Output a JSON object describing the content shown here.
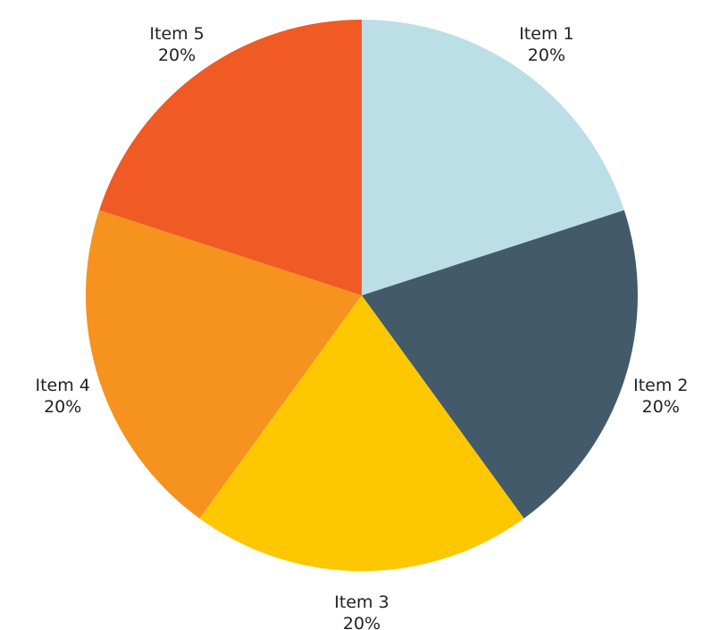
{
  "chart_data": {
    "type": "pie",
    "title": "",
    "start_angle_deg": 0,
    "direction": "clockwise",
    "slices": [
      {
        "label": "Item 1",
        "value": 20,
        "display": "20%",
        "color": "#BCDEE7"
      },
      {
        "label": "Item 2",
        "value": 20,
        "display": "20%",
        "color": "#435A6B"
      },
      {
        "label": "Item 3",
        "value": 20,
        "display": "20%",
        "color": "#FDC802"
      },
      {
        "label": "Item 4",
        "value": 20,
        "display": "20%",
        "color": "#F6921E"
      },
      {
        "label": "Item 5",
        "value": 20,
        "display": "20%",
        "color": "#F05A24"
      }
    ],
    "legend": "none",
    "labels_position": "outside"
  }
}
